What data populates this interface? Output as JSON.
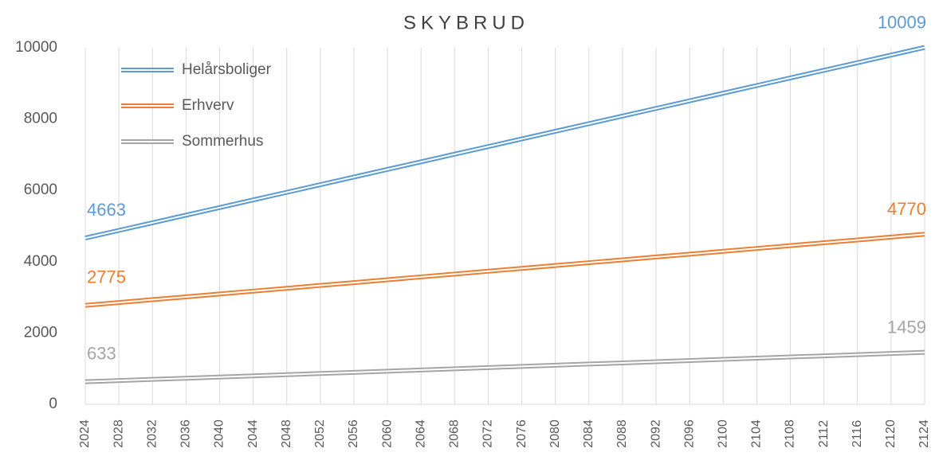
{
  "chart_data": {
    "type": "line",
    "title": "SKYBRUD",
    "x": [
      2024,
      2028,
      2032,
      2036,
      2040,
      2044,
      2048,
      2052,
      2056,
      2060,
      2064,
      2068,
      2072,
      2076,
      2080,
      2084,
      2088,
      2092,
      2096,
      2100,
      2104,
      2108,
      2112,
      2116,
      2120,
      2124
    ],
    "xlim": [
      2024,
      2124
    ],
    "xticks": [
      2024,
      2028,
      2032,
      2036,
      2040,
      2044,
      2048,
      2052,
      2056,
      2060,
      2064,
      2068,
      2072,
      2076,
      2080,
      2084,
      2088,
      2092,
      2096,
      2100,
      2104,
      2108,
      2112,
      2116,
      2120,
      2124
    ],
    "ylim": [
      0,
      10000
    ],
    "yticks": [
      0,
      2000,
      4000,
      6000,
      8000,
      10000
    ],
    "grid": true,
    "legend": "upper left",
    "series": [
      {
        "name": "Helårsboliger",
        "color": "#5b9bd5",
        "values": [
          4663,
          4877,
          5091,
          5305,
          5518,
          5732,
          5946,
          6160,
          6374,
          6588,
          6801,
          7015,
          7229,
          7443,
          7657,
          7871,
          8085,
          8298,
          8512,
          8726,
          8940,
          9154,
          9367,
          9581,
          9795,
          10009
        ]
      },
      {
        "name": "Erhverv",
        "color": "#ed7d31",
        "values": [
          2775,
          2855,
          2935,
          3014,
          3094,
          3174,
          3254,
          3334,
          3413,
          3493,
          3573,
          3653,
          3733,
          3812,
          3892,
          3972,
          4052,
          4132,
          4211,
          4291,
          4371,
          4451,
          4531,
          4610,
          4690,
          4770
        ]
      },
      {
        "name": "Sommerhus",
        "color": "#a5a5a5",
        "values": [
          633,
          666,
          699,
          732,
          765,
          798,
          831,
          864,
          897,
          930,
          963,
          996,
          1029,
          1063,
          1096,
          1129,
          1162,
          1195,
          1228,
          1261,
          1294,
          1327,
          1360,
          1393,
          1426,
          1459
        ]
      }
    ]
  }
}
